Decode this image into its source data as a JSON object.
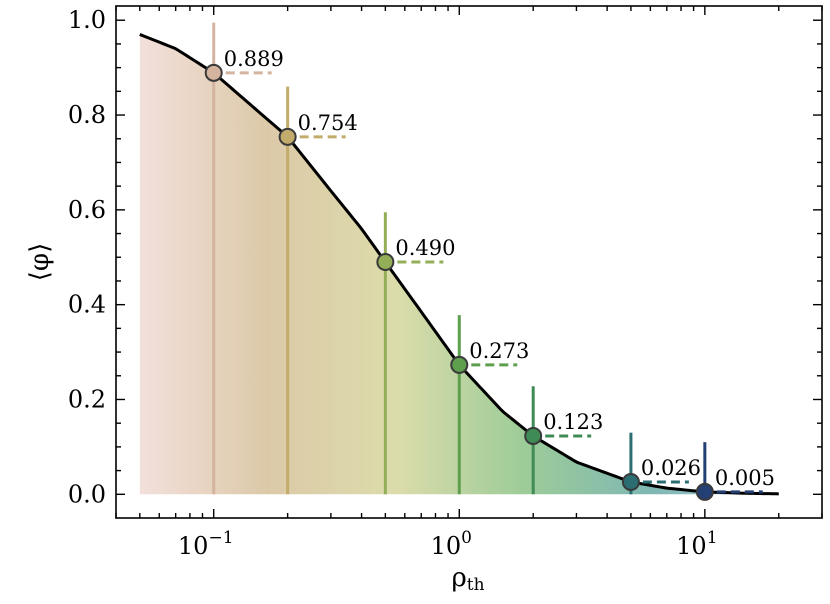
{
  "chart_data": {
    "type": "scatter",
    "xlabel": "ρ",
    "xlabel_sub": "th",
    "ylabel": "⟨φ⟩",
    "x_scale": "log",
    "xlim": [
      0.04,
      30
    ],
    "ylim": [
      -0.05,
      1.03
    ],
    "grid": false,
    "legend": "none",
    "x_ticks": [
      {
        "base": "10",
        "exp": "−1",
        "value": 0.1
      },
      {
        "base": "10",
        "exp": "0",
        "value": 1
      },
      {
        "base": "10",
        "exp": "1",
        "value": 10
      }
    ],
    "y_ticks": [
      "0.0",
      "0.2",
      "0.4",
      "0.6",
      "0.8",
      "1.0"
    ],
    "points": [
      {
        "x": 0.1,
        "y": 0.889,
        "yerr_low": 0.0,
        "yerr_high": 0.995,
        "label": "0.889",
        "color": "#d4b49f"
      },
      {
        "x": 0.2,
        "y": 0.754,
        "yerr_low": 0.0,
        "yerr_high": 0.86,
        "label": "0.754",
        "color": "#c3ac6b"
      },
      {
        "x": 0.5,
        "y": 0.49,
        "yerr_low": 0.0,
        "yerr_high": 0.595,
        "label": "0.490",
        "color": "#94ae58"
      },
      {
        "x": 1.0,
        "y": 0.273,
        "yerr_low": 0.0,
        "yerr_high": 0.378,
        "label": "0.273",
        "color": "#5e9f4e"
      },
      {
        "x": 2.0,
        "y": 0.123,
        "yerr_low": 0.0,
        "yerr_high": 0.228,
        "label": "0.123",
        "color": "#3f8b55"
      },
      {
        "x": 5.0,
        "y": 0.026,
        "yerr_low": 0.0,
        "yerr_high": 0.13,
        "label": "0.026",
        "color": "#2b6e72"
      },
      {
        "x": 10.0,
        "y": 0.005,
        "yerr_low": 0.0,
        "yerr_high": 0.11,
        "label": "0.005",
        "color": "#233f73"
      }
    ],
    "curve": {
      "color": "#000000",
      "x": [
        0.05,
        0.07,
        0.1,
        0.15,
        0.2,
        0.3,
        0.4,
        0.5,
        0.7,
        1.0,
        1.5,
        2.0,
        3.0,
        5.0,
        7.0,
        10.0,
        15.0,
        20.0
      ],
      "y": [
        0.97,
        0.94,
        0.889,
        0.81,
        0.754,
        0.64,
        0.56,
        0.49,
        0.385,
        0.273,
        0.175,
        0.123,
        0.068,
        0.026,
        0.013,
        0.005,
        0.002,
        0.001
      ]
    },
    "fill_gradient": [
      "#f3e0dc",
      "#dcc9a8",
      "#dcdcab",
      "#9dcc98",
      "#7fb7b3",
      "#aac9d8"
    ]
  }
}
